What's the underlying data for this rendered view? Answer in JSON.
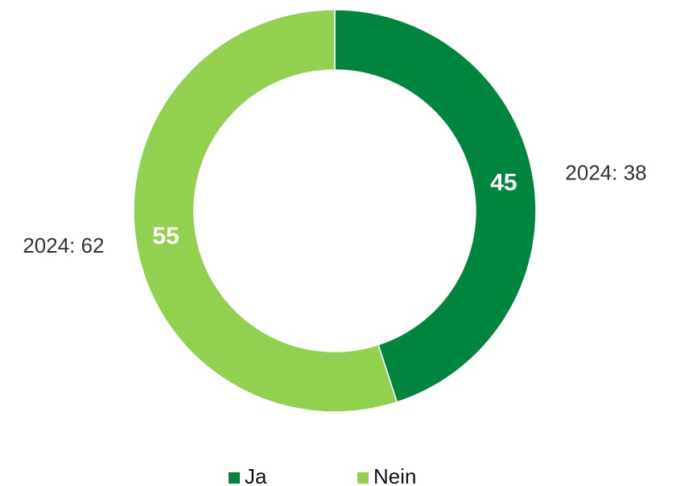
{
  "chart_data": {
    "type": "donut",
    "categories": [
      "Ja",
      "Nein"
    ],
    "values": [
      45,
      55
    ],
    "colors": [
      "#00853e",
      "#92d050"
    ],
    "annotations": [
      "2024: 38",
      "2024: 62"
    ],
    "legend": "bottom"
  }
}
